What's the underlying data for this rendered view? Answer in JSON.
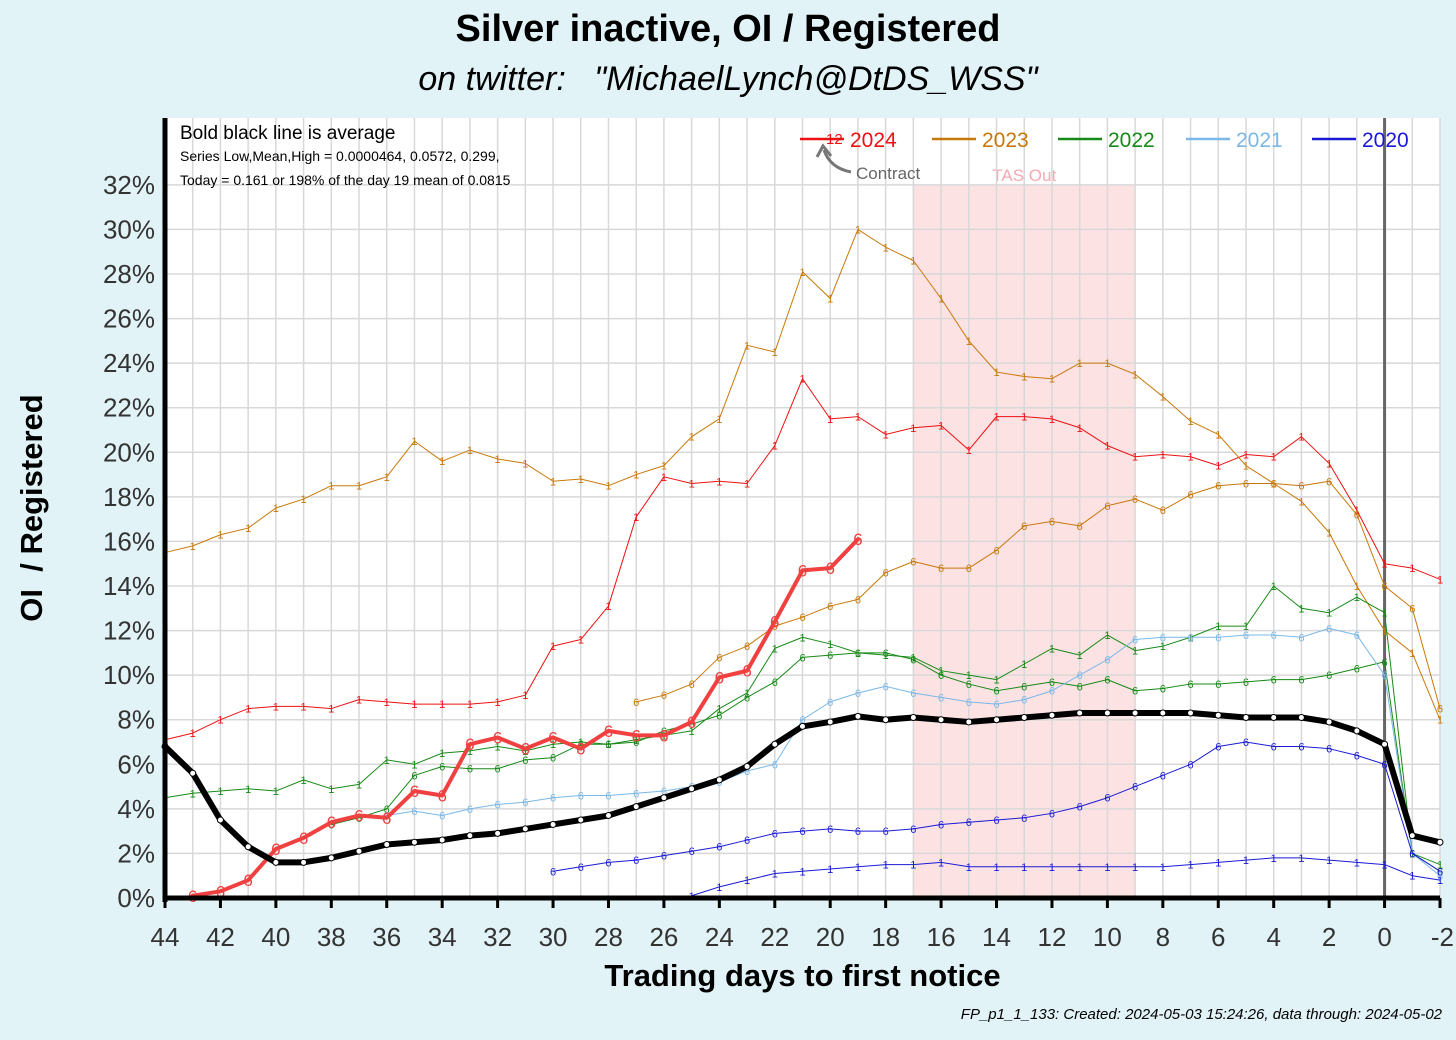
{
  "title": "Silver inactive, OI / Registered",
  "subtitle": "on twitter:   \"MichaelLynch@DtDS_WSS\"",
  "footer": "FP_p1_1_133: Created: 2024-05-03 15:24:26, data through: 2024-05-02",
  "annotations": {
    "line1": "Bold black line is average",
    "line2": "Series Low,Mean,High = 0.0000464, 0.0572, 0.299,",
    "line3": "Today = 0.161 or 198% of the day 19 mean of 0.0815",
    "contract_marker": "12",
    "contract_label": "Contract",
    "tas_label": "TAS Out"
  },
  "colors": {
    "2024": "#ee1111",
    "2023": "#c8780a",
    "2022": "#168a16",
    "2021": "#7ab8e8",
    "2020": "#1a1ad6",
    "average": "#000000",
    "current": "#f04040",
    "tas_band": "#fde2e4",
    "tas_text": "#f4a9b3",
    "plot_bg": "#ffffff",
    "grid": "#d8d8d8"
  },
  "chart_data": {
    "type": "line",
    "title": "Silver inactive, OI / Registered",
    "xlabel": "Trading days to first notice",
    "ylabel": "OI  / Registered",
    "xlim": [
      44,
      -2
    ],
    "ylim": [
      0,
      0.35
    ],
    "x_ticks": [
      44,
      42,
      40,
      38,
      36,
      34,
      32,
      30,
      28,
      26,
      24,
      22,
      20,
      18,
      16,
      14,
      12,
      10,
      8,
      6,
      4,
      2,
      0,
      -2
    ],
    "y_ticks": [
      0,
      0.02,
      0.04,
      0.06,
      0.08,
      0.1,
      0.12,
      0.14,
      0.16,
      0.18,
      0.2,
      0.22,
      0.24,
      0.26,
      0.28,
      0.3,
      0.32
    ],
    "y_tick_labels": [
      "0%",
      "2%",
      "4%",
      "6%",
      "8%",
      "10%",
      "12%",
      "14%",
      "16%",
      "18%",
      "20%",
      "22%",
      "24%",
      "26%",
      "28%",
      "30%",
      "32%"
    ],
    "grid": true,
    "legend_position": "top-right",
    "legend": [
      {
        "label": "2024",
        "color_key": "2024"
      },
      {
        "label": "2023",
        "color_key": "2023"
      },
      {
        "label": "2022",
        "color_key": "2022"
      },
      {
        "label": "2021",
        "color_key": "2021"
      },
      {
        "label": "2020",
        "color_key": "2020"
      }
    ],
    "shaded_region": {
      "label": "TAS Out",
      "x_from": 17,
      "x_to": 9,
      "y_top": 0.32
    },
    "vertical_line_x": 0,
    "series": [
      {
        "name": "Average",
        "color_key": "average",
        "width": 6,
        "marker": "o",
        "x": [
          44,
          43,
          42,
          41,
          40,
          39,
          38,
          37,
          36,
          35,
          34,
          33,
          32,
          31,
          30,
          29,
          28,
          27,
          26,
          25,
          24,
          23,
          22,
          21,
          20,
          19,
          18,
          17,
          16,
          15,
          14,
          13,
          12,
          11,
          10,
          9,
          8,
          7,
          6,
          5,
          4,
          3,
          2,
          1,
          0,
          -1,
          -2
        ],
        "y": [
          0.068,
          0.056,
          0.035,
          0.023,
          0.016,
          0.016,
          0.018,
          0.021,
          0.024,
          0.025,
          0.026,
          0.028,
          0.029,
          0.031,
          0.033,
          0.035,
          0.037,
          0.041,
          0.045,
          0.049,
          0.053,
          0.059,
          0.069,
          0.077,
          0.079,
          0.0815,
          0.08,
          0.081,
          0.08,
          0.079,
          0.08,
          0.081,
          0.082,
          0.083,
          0.083,
          0.083,
          0.083,
          0.083,
          0.082,
          0.081,
          0.081,
          0.081,
          0.079,
          0.075,
          0.069,
          0.028,
          0.025
        ]
      },
      {
        "name": "2024 current",
        "color_key": "current",
        "width": 4,
        "marker": "6",
        "x": [
          43,
          42,
          41,
          40,
          39,
          38,
          37,
          36,
          35,
          34,
          33,
          32,
          31,
          30,
          29,
          28,
          27,
          26,
          25,
          24,
          23,
          22,
          21,
          20,
          19
        ],
        "y": [
          0.001,
          0.003,
          0.008,
          0.022,
          0.027,
          0.034,
          0.037,
          0.036,
          0.048,
          0.046,
          0.069,
          0.072,
          0.067,
          0.072,
          0.067,
          0.075,
          0.073,
          0.073,
          0.079,
          0.099,
          0.102,
          0.124,
          0.147,
          0.148,
          0.161
        ]
      },
      {
        "name": "2024 contract A",
        "color_key": "2024",
        "width": 1,
        "marker": "1",
        "x": [
          44,
          43,
          42,
          41,
          40,
          39,
          38,
          37,
          36,
          35,
          34,
          33,
          32,
          31,
          30,
          29,
          28,
          27,
          26,
          25,
          24,
          23,
          22,
          21,
          20,
          19,
          18,
          17,
          16,
          15,
          14,
          13,
          12,
          11,
          10,
          9,
          8,
          7,
          6,
          5,
          4,
          3,
          2,
          1,
          0,
          -1,
          -2
        ],
        "y": [
          0.071,
          0.074,
          0.08,
          0.085,
          0.086,
          0.086,
          0.085,
          0.089,
          0.088,
          0.087,
          0.087,
          0.087,
          0.088,
          0.091,
          0.113,
          0.116,
          0.131,
          0.171,
          0.189,
          0.186,
          0.187,
          0.186,
          0.203,
          0.233,
          0.215,
          0.216,
          0.208,
          0.211,
          0.212,
          0.201,
          0.216,
          0.216,
          0.215,
          0.211,
          0.203,
          0.198,
          0.199,
          0.198,
          0.194,
          0.199,
          0.198,
          0.207,
          0.195,
          0.174,
          0.15,
          0.148,
          0.143
        ]
      },
      {
        "name": "2023 contract A",
        "color_key": "2023",
        "width": 1,
        "marker": "1",
        "x": [
          44,
          43,
          42,
          41,
          40,
          39,
          38,
          37,
          36,
          35,
          34,
          33,
          32,
          31,
          30,
          29,
          28,
          27,
          26,
          25,
          24,
          23,
          22,
          21,
          20,
          19,
          18,
          17,
          16,
          15,
          14,
          13,
          12,
          11,
          10,
          9,
          8,
          7,
          6,
          5,
          4,
          3,
          2,
          1,
          0,
          -1,
          -2
        ],
        "y": [
          0.155,
          0.158,
          0.163,
          0.166,
          0.175,
          0.179,
          0.185,
          0.185,
          0.189,
          0.205,
          0.196,
          0.201,
          0.197,
          0.195,
          0.187,
          0.188,
          0.185,
          0.19,
          0.194,
          0.207,
          0.215,
          0.248,
          0.245,
          0.281,
          0.269,
          0.3,
          0.292,
          0.286,
          0.269,
          0.25,
          0.236,
          0.234,
          0.233,
          0.24,
          0.24,
          0.235,
          0.225,
          0.214,
          0.208,
          0.194,
          0.186,
          0.178,
          0.164,
          0.14,
          0.12,
          0.11,
          0.08
        ]
      },
      {
        "name": "2023 contract B",
        "color_key": "2023",
        "width": 1,
        "marker": "6",
        "x": [
          27,
          26,
          25,
          24,
          23,
          22,
          21,
          20,
          19,
          18,
          17,
          16,
          15,
          14,
          13,
          12,
          11,
          10,
          9,
          8,
          7,
          6,
          5,
          4,
          3,
          2,
          1,
          0,
          -1,
          -2
        ],
        "y": [
          0.088,
          0.091,
          0.096,
          0.108,
          0.113,
          0.122,
          0.126,
          0.131,
          0.134,
          0.146,
          0.151,
          0.148,
          0.148,
          0.156,
          0.167,
          0.169,
          0.167,
          0.176,
          0.179,
          0.174,
          0.181,
          0.185,
          0.186,
          0.186,
          0.185,
          0.187,
          0.172,
          0.14,
          0.13,
          0.085
        ]
      },
      {
        "name": "2022 contract A",
        "color_key": "2022",
        "width": 1,
        "marker": "1",
        "x": [
          44,
          43,
          42,
          41,
          40,
          39,
          38,
          37,
          36,
          35,
          34,
          33,
          32,
          31,
          30,
          29,
          28,
          27,
          26,
          25,
          24,
          23,
          22,
          21,
          20,
          19,
          18,
          17,
          16,
          15,
          14,
          13,
          12,
          11,
          10,
          9,
          8,
          7,
          6,
          5,
          4,
          3,
          2,
          1,
          0,
          -1,
          -2
        ],
        "y": [
          0.045,
          0.047,
          0.048,
          0.049,
          0.048,
          0.053,
          0.049,
          0.051,
          0.062,
          0.06,
          0.065,
          0.066,
          0.068,
          0.066,
          0.069,
          0.07,
          0.069,
          0.071,
          0.073,
          0.075,
          0.085,
          0.092,
          0.112,
          0.117,
          0.114,
          0.11,
          0.109,
          0.108,
          0.102,
          0.1,
          0.098,
          0.105,
          0.112,
          0.109,
          0.118,
          0.111,
          0.113,
          0.117,
          0.122,
          0.122,
          0.14,
          0.13,
          0.128,
          0.135,
          0.128,
          0.02,
          0.015
        ]
      },
      {
        "name": "2022 contract B",
        "color_key": "2022",
        "width": 1,
        "marker": "6",
        "x": [
          38,
          37,
          36,
          35,
          34,
          33,
          32,
          31,
          30,
          29,
          28,
          27,
          26,
          25,
          24,
          23,
          22,
          21,
          20,
          19,
          18,
          17,
          16,
          15,
          14,
          13,
          12,
          11,
          10,
          9,
          8,
          7,
          6,
          5,
          4,
          3,
          2,
          1,
          0,
          -1,
          -2
        ],
        "y": [
          0.033,
          0.036,
          0.04,
          0.055,
          0.059,
          0.058,
          0.058,
          0.062,
          0.063,
          0.069,
          0.069,
          0.07,
          0.075,
          0.078,
          0.082,
          0.09,
          0.097,
          0.108,
          0.109,
          0.11,
          0.11,
          0.107,
          0.1,
          0.096,
          0.093,
          0.095,
          0.097,
          0.095,
          0.098,
          0.093,
          0.094,
          0.096,
          0.096,
          0.097,
          0.098,
          0.098,
          0.1,
          0.103,
          0.106,
          0.02,
          0.012
        ]
      },
      {
        "name": "2021 contract A",
        "color_key": "2021",
        "width": 1,
        "marker": "6",
        "x": [
          36,
          35,
          34,
          33,
          32,
          31,
          30,
          29,
          28,
          27,
          26,
          25,
          24,
          23,
          22,
          21,
          20,
          19,
          18,
          17,
          16,
          15,
          14,
          13,
          12,
          11,
          10,
          9,
          8,
          7,
          6,
          5,
          4,
          3,
          2,
          1,
          0,
          -1,
          -2
        ],
        "y": [
          0.037,
          0.039,
          0.037,
          0.04,
          0.042,
          0.043,
          0.045,
          0.046,
          0.046,
          0.047,
          0.048,
          0.05,
          0.052,
          0.057,
          0.06,
          0.08,
          0.088,
          0.092,
          0.095,
          0.092,
          0.09,
          0.088,
          0.087,
          0.089,
          0.093,
          0.1,
          0.107,
          0.116,
          0.117,
          0.117,
          0.117,
          0.118,
          0.118,
          0.117,
          0.121,
          0.118,
          0.1,
          0.02,
          0.01
        ]
      },
      {
        "name": "2020 contract A",
        "color_key": "2020",
        "width": 1,
        "marker": "1",
        "x": [
          25,
          24,
          23,
          22,
          21,
          20,
          19,
          18,
          17,
          16,
          15,
          14,
          13,
          12,
          11,
          10,
          9,
          8,
          7,
          6,
          5,
          4,
          3,
          2,
          1,
          0,
          -1,
          -2
        ],
        "y": [
          0.001,
          0.005,
          0.008,
          0.011,
          0.012,
          0.013,
          0.014,
          0.015,
          0.015,
          0.016,
          0.014,
          0.014,
          0.014,
          0.014,
          0.014,
          0.014,
          0.014,
          0.014,
          0.015,
          0.016,
          0.017,
          0.018,
          0.018,
          0.017,
          0.016,
          0.015,
          0.01,
          0.008
        ]
      },
      {
        "name": "2020 contract B",
        "color_key": "2020",
        "width": 1,
        "marker": "6",
        "x": [
          30,
          29,
          28,
          27,
          26,
          25,
          24,
          23,
          22,
          21,
          20,
          19,
          18,
          17,
          16,
          15,
          14,
          13,
          12,
          11,
          10,
          9,
          8,
          7,
          6,
          5,
          4,
          3,
          2,
          1,
          0,
          -1,
          -2
        ],
        "y": [
          0.012,
          0.014,
          0.016,
          0.017,
          0.019,
          0.021,
          0.023,
          0.026,
          0.029,
          0.03,
          0.031,
          0.03,
          0.03,
          0.031,
          0.033,
          0.034,
          0.035,
          0.036,
          0.038,
          0.041,
          0.045,
          0.05,
          0.055,
          0.06,
          0.068,
          0.07,
          0.068,
          0.068,
          0.067,
          0.064,
          0.06,
          0.02,
          0.012
        ]
      }
    ]
  }
}
